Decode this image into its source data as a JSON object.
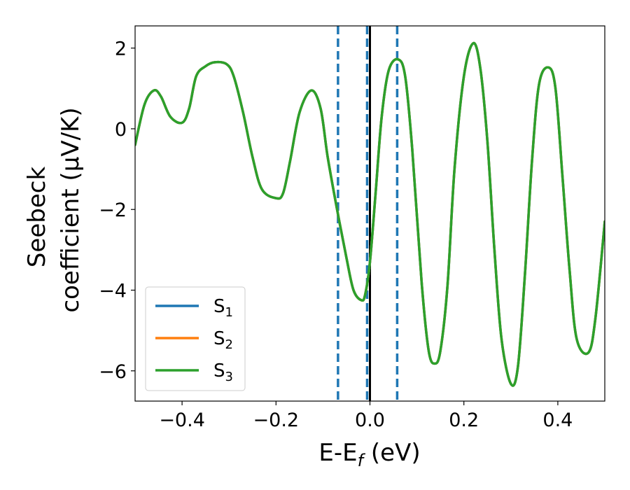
{
  "chart_data": {
    "type": "line",
    "xlabel": {
      "main": "E-E",
      "sub": "f",
      "suffix": " (eV)"
    },
    "ylabel": {
      "line1": "Seebeck",
      "line2": "coefficient  (μV/K)"
    },
    "xlim": [
      -0.5,
      0.5
    ],
    "ylim": [
      -6.75,
      2.55
    ],
    "xticks": [
      -0.4,
      -0.2,
      0.0,
      0.2,
      0.4
    ],
    "xtick_labels": [
      "−0.4",
      "−0.2",
      "0.0",
      "0.2",
      "0.4"
    ],
    "yticks": [
      -6,
      -4,
      -2,
      0,
      2
    ],
    "ytick_labels": [
      "−6",
      "−4",
      "−2",
      "0",
      "2"
    ],
    "grid": false,
    "legend_position": "lower-left",
    "vlines": [
      {
        "x": -0.068,
        "style": "dashed",
        "color": "#1f77b4"
      },
      {
        "x": -0.006,
        "style": "dashed",
        "color": "#1f77b4"
      },
      {
        "x": 0.058,
        "style": "dashed",
        "color": "#1f77b4"
      },
      {
        "x": 0.0,
        "style": "solid",
        "color": "#000000"
      }
    ],
    "series": [
      {
        "name": "S",
        "sub": "1",
        "color": "#1f77b4",
        "ref": "main"
      },
      {
        "name": "S",
        "sub": "2",
        "color": "#ff7f0e",
        "ref": "main"
      },
      {
        "name": "S",
        "sub": "3",
        "color": "#2ca02c",
        "ref": "main"
      }
    ],
    "x": [
      -0.5,
      -0.48,
      -0.46,
      -0.445,
      -0.425,
      -0.4,
      -0.385,
      -0.37,
      -0.35,
      -0.33,
      -0.305,
      -0.29,
      -0.27,
      -0.25,
      -0.23,
      -0.2,
      -0.185,
      -0.17,
      -0.15,
      -0.125,
      -0.105,
      -0.09,
      -0.07,
      -0.05,
      -0.035,
      -0.018,
      -0.01,
      0.0,
      0.012,
      0.025,
      0.04,
      0.06,
      0.075,
      0.09,
      0.11,
      0.125,
      0.138,
      0.15,
      0.165,
      0.18,
      0.2,
      0.22,
      0.235,
      0.25,
      0.265,
      0.28,
      0.3,
      0.315,
      0.33,
      0.345,
      0.36,
      0.38,
      0.395,
      0.41,
      0.425,
      0.44,
      0.465,
      0.48,
      0.5
    ],
    "values": [
      -0.4,
      0.6,
      0.95,
      0.8,
      0.3,
      0.15,
      0.5,
      1.3,
      1.55,
      1.65,
      1.6,
      1.3,
      0.4,
      -0.7,
      -1.5,
      -1.72,
      -1.6,
      -0.8,
      0.4,
      0.95,
      0.5,
      -0.7,
      -2.0,
      -3.2,
      -4.0,
      -4.25,
      -4.1,
      -3.3,
      -1.6,
      0.3,
      1.45,
      1.72,
      1.3,
      -0.5,
      -3.8,
      -5.5,
      -5.82,
      -5.5,
      -3.9,
      -1.0,
      1.3,
      2.12,
      1.5,
      -0.3,
      -3.0,
      -5.2,
      -6.32,
      -5.9,
      -3.6,
      -0.8,
      1.1,
      1.52,
      1.0,
      -1.2,
      -3.5,
      -5.2,
      -5.55,
      -4.7,
      -2.3
    ]
  }
}
